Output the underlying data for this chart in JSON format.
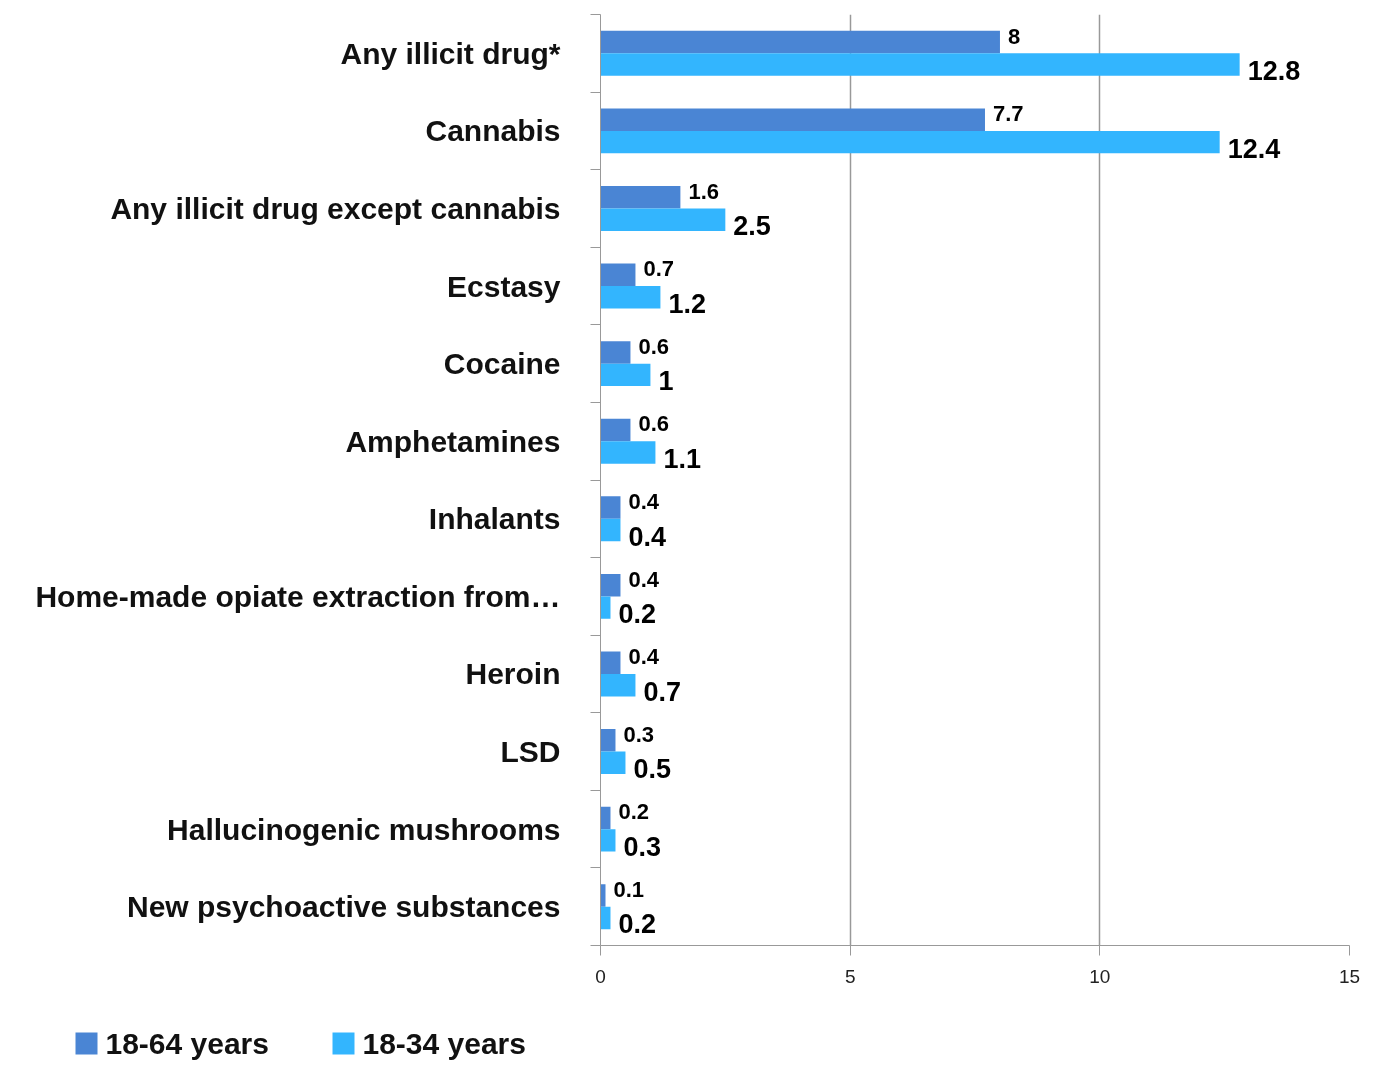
{
  "chart_data": {
    "type": "bar",
    "orientation": "horizontal",
    "categories": [
      "Any illicit drug*",
      "Cannabis",
      "Any illicit drug except cannabis",
      "Ecstasy",
      "Cocaine",
      "Amphetamines",
      "Inhalants",
      "Home-made opiate extraction from…",
      "Heroin",
      "LSD",
      "Hallucinogenic mushrooms",
      "New psychoactive substances"
    ],
    "series": [
      {
        "name": "18-64 years",
        "color": "#4a85d4",
        "values": [
          8,
          7.7,
          1.6,
          0.7,
          0.6,
          0.6,
          0.4,
          0.4,
          0.4,
          0.3,
          0.2,
          0.1
        ]
      },
      {
        "name": "18-34 years",
        "color": "#33b5fe",
        "values": [
          12.8,
          12.4,
          2.5,
          1.2,
          1,
          1.1,
          0.4,
          0.2,
          0.7,
          0.5,
          0.3,
          0.2
        ]
      }
    ],
    "xlim": [
      0,
      15
    ],
    "xticks": [
      0,
      5,
      10,
      15
    ],
    "grid": "x",
    "legend": "bottom",
    "data_labels": true
  }
}
